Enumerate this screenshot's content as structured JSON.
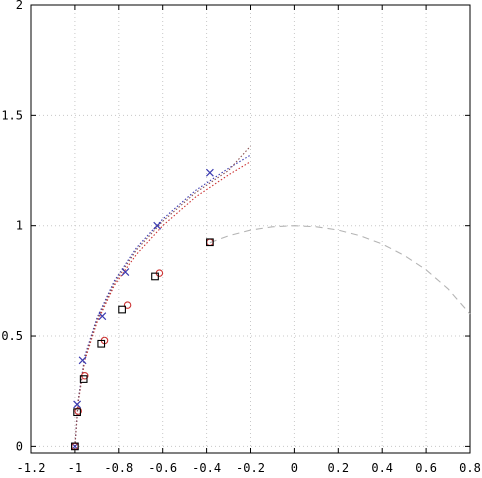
{
  "chart_data": {
    "type": "scatter",
    "title": "",
    "xlabel": "",
    "ylabel": "",
    "xlim": [
      -1.2,
      0.8
    ],
    "ylim": [
      -0.03,
      2.0
    ],
    "grid": true,
    "x_ticks": [
      -1.2,
      -1.0,
      -0.8,
      -0.6,
      -0.4,
      -0.2,
      0,
      0.2,
      0.4,
      0.6,
      0.8
    ],
    "x_tick_labels": [
      "-1.2",
      "-1",
      "-0.8",
      "-0.6",
      "-0.4",
      "-0.2",
      "0",
      "0.2",
      "0.4",
      "0.6",
      "0.8"
    ],
    "y_ticks": [
      0,
      0.5,
      1,
      1.5,
      2
    ],
    "y_tick_labels": [
      "0",
      "0.5",
      "1",
      "1.5",
      "2"
    ],
    "series": [
      {
        "marker": "x",
        "color": "#3b3bb0",
        "points": [
          [
            -1.0,
            0.0
          ],
          [
            -0.99,
            0.19
          ],
          [
            -0.965,
            0.39
          ],
          [
            -0.875,
            0.59
          ],
          [
            -0.77,
            0.79
          ],
          [
            -0.625,
            1.0
          ],
          [
            -0.385,
            1.24
          ]
        ]
      },
      {
        "marker": "circle",
        "color": "#cc3333",
        "points": [
          [
            -1.0,
            0.0
          ],
          [
            -0.985,
            0.16
          ],
          [
            -0.955,
            0.32
          ],
          [
            -0.865,
            0.48
          ],
          [
            -0.76,
            0.64
          ],
          [
            -0.615,
            0.785
          ],
          [
            -0.385,
            0.925
          ]
        ]
      },
      {
        "marker": "square",
        "color": "#000000",
        "points": [
          [
            -1.0,
            0.0
          ],
          [
            -0.99,
            0.155
          ],
          [
            -0.96,
            0.305
          ],
          [
            -0.88,
            0.465
          ],
          [
            -0.785,
            0.62
          ],
          [
            -0.635,
            0.77
          ],
          [
            -0.385,
            0.925
          ]
        ]
      }
    ],
    "curves": [
      {
        "style": "dashed",
        "color": "#b4b4b4",
        "description": "unit circle upper arc",
        "points": [
          [
            -0.385,
            0.923
          ],
          [
            -0.3,
            0.954
          ],
          [
            -0.2,
            0.98
          ],
          [
            -0.1,
            0.995
          ],
          [
            0.0,
            1.0
          ],
          [
            0.1,
            0.995
          ],
          [
            0.2,
            0.98
          ],
          [
            0.3,
            0.954
          ],
          [
            0.4,
            0.917
          ],
          [
            0.5,
            0.866
          ],
          [
            0.6,
            0.8
          ],
          [
            0.7,
            0.714
          ],
          [
            0.8,
            0.6
          ]
        ]
      },
      {
        "style": "dotted",
        "color": "#cc3333",
        "points": [
          [
            -1.0,
            0.0
          ],
          [
            -0.985,
            0.2
          ],
          [
            -0.955,
            0.39
          ],
          [
            -0.9,
            0.56
          ],
          [
            -0.82,
            0.73
          ],
          [
            -0.72,
            0.87
          ],
          [
            -0.6,
            1.0
          ],
          [
            -0.45,
            1.13
          ],
          [
            -0.3,
            1.23
          ],
          [
            -0.2,
            1.29
          ]
        ]
      },
      {
        "style": "dotted",
        "color": "#3b3bb0",
        "points": [
          [
            -1.0,
            0.0
          ],
          [
            -0.985,
            0.21
          ],
          [
            -0.955,
            0.41
          ],
          [
            -0.9,
            0.58
          ],
          [
            -0.82,
            0.75
          ],
          [
            -0.72,
            0.9
          ],
          [
            -0.6,
            1.03
          ],
          [
            -0.45,
            1.16
          ],
          [
            -0.3,
            1.26
          ],
          [
            -0.2,
            1.32
          ]
        ]
      },
      {
        "style": "dotted",
        "color": "#8a5050",
        "points": [
          [
            -1.0,
            0.0
          ],
          [
            -0.985,
            0.21
          ],
          [
            -0.955,
            0.4
          ],
          [
            -0.9,
            0.57
          ],
          [
            -0.82,
            0.74
          ],
          [
            -0.72,
            0.89
          ],
          [
            -0.6,
            1.02
          ],
          [
            -0.45,
            1.15
          ],
          [
            -0.3,
            1.25
          ],
          [
            -0.2,
            1.36
          ]
        ]
      }
    ]
  }
}
